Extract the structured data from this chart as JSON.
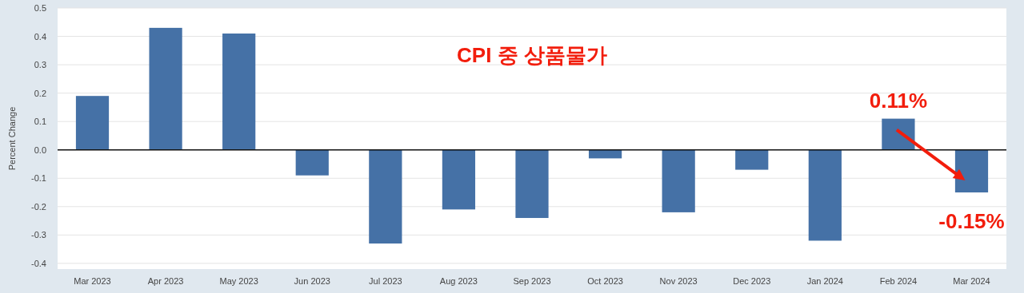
{
  "chart_data": {
    "type": "bar",
    "title": "CPI 중 상품물가",
    "ylabel": "Percent Change",
    "categories": [
      "Mar 2023",
      "Apr 2023",
      "May 2023",
      "Jun 2023",
      "Jul 2023",
      "Aug 2023",
      "Sep 2023",
      "Oct 2023",
      "Nov 2023",
      "Dec 2023",
      "Jan 2024",
      "Feb 2024",
      "Mar 2024"
    ],
    "values": [
      0.19,
      0.43,
      0.41,
      -0.09,
      -0.33,
      -0.21,
      -0.24,
      -0.03,
      -0.22,
      -0.07,
      -0.32,
      0.11,
      -0.15
    ],
    "value_labels": [
      null,
      null,
      null,
      null,
      null,
      null,
      null,
      null,
      null,
      null,
      null,
      "0.11%",
      "-0.15%"
    ],
    "color": "#4571a6",
    "ylim": [
      -0.42,
      0.5
    ],
    "yticks": [
      0.5,
      0.4,
      0.3,
      0.2,
      0.1,
      {
        "value": 0,
        "label": "0.0"
      },
      -0.1,
      -0.2,
      -0.3,
      -0.4
    ],
    "grid": "y"
  }
}
